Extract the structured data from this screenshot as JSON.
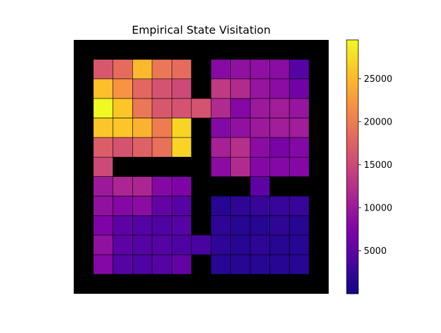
{
  "chart_data": {
    "type": "heatmap",
    "title": "Empirical State Visitation",
    "xlabel": "",
    "ylabel": "",
    "grid": false,
    "colormap": "plasma",
    "wall_color": "#000000",
    "rows": 13,
    "cols": 13,
    "values": [
      [
        null,
        null,
        null,
        null,
        null,
        null,
        null,
        null,
        null,
        null,
        null,
        null,
        null
      ],
      [
        null,
        16500,
        18500,
        25000,
        19500,
        18500,
        null,
        8200,
        9000,
        8800,
        8500,
        4500,
        null
      ],
      [
        null,
        25500,
        22000,
        18000,
        16000,
        15000,
        null,
        13500,
        12000,
        9500,
        8500,
        6500,
        null
      ],
      [
        null,
        29500,
        26000,
        19500,
        16500,
        16000,
        16000,
        12000,
        8000,
        10000,
        10500,
        9500,
        null
      ],
      [
        null,
        26000,
        26000,
        24500,
        20000,
        27000,
        null,
        8000,
        9000,
        10000,
        10500,
        10500,
        null
      ],
      [
        null,
        17000,
        16000,
        17500,
        19000,
        27000,
        null,
        11000,
        12500,
        8500,
        7000,
        8000,
        null
      ],
      [
        null,
        15000,
        null,
        null,
        null,
        null,
        null,
        8500,
        12000,
        8000,
        8000,
        8000,
        null
      ],
      [
        null,
        10000,
        11500,
        11500,
        8000,
        7500,
        null,
        null,
        null,
        5000,
        null,
        null,
        null
      ],
      [
        null,
        9000,
        8000,
        8500,
        5500,
        4500,
        null,
        1500,
        2000,
        2500,
        2500,
        2500,
        null
      ],
      [
        null,
        7500,
        5000,
        4500,
        4000,
        4500,
        null,
        2000,
        1500,
        1500,
        2000,
        1500,
        null
      ],
      [
        null,
        9000,
        5000,
        4500,
        4500,
        4000,
        3500,
        2000,
        1500,
        2000,
        1500,
        1500,
        null
      ],
      [
        null,
        8000,
        4500,
        4000,
        4500,
        5500,
        null,
        1500,
        1500,
        1500,
        1500,
        1500,
        null
      ],
      [
        null,
        null,
        null,
        null,
        null,
        null,
        null,
        null,
        null,
        null,
        null,
        null,
        null
      ]
    ],
    "colorbar": {
      "min": 0,
      "max": 29500,
      "ticks": [
        5000,
        10000,
        15000,
        20000,
        25000
      ],
      "tick_labels": [
        "5000",
        "10000",
        "15000",
        "20000",
        "25000"
      ]
    }
  }
}
